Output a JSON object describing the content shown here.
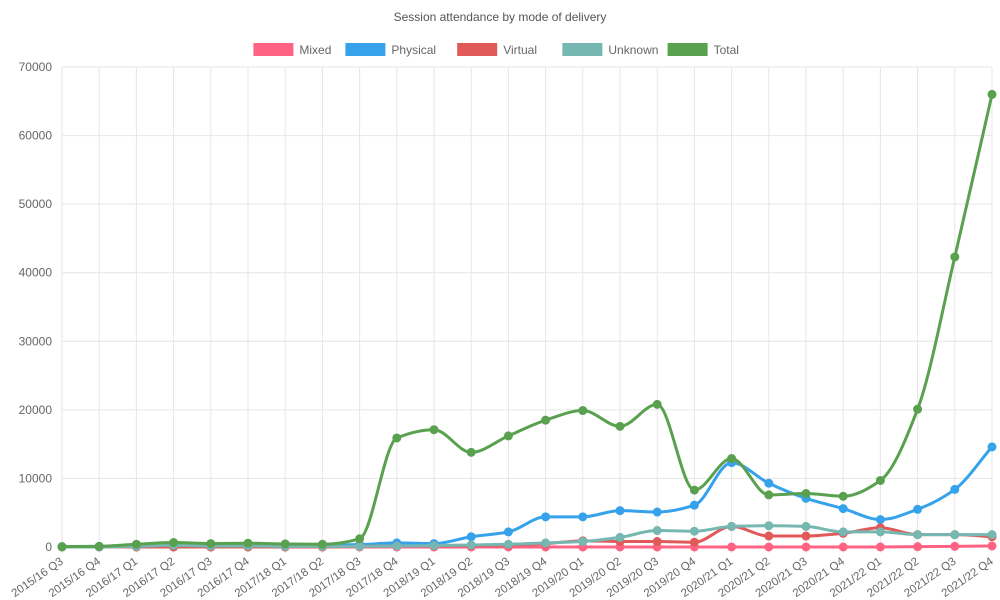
{
  "chart_data": {
    "type": "line",
    "title": "Session attendance by mode of delivery",
    "xlabel": "",
    "ylabel": "",
    "ylim": [
      0,
      70000
    ],
    "yticks": [
      0,
      10000,
      20000,
      30000,
      40000,
      50000,
      60000,
      70000
    ],
    "grid": true,
    "legend_position": "top",
    "categories": [
      "2015/16 Q3",
      "2015/16 Q4",
      "2016/17 Q1",
      "2016/17 Q2",
      "2016/17 Q3",
      "2016/17 Q4",
      "2017/18 Q1",
      "2017/18 Q2",
      "2017/18 Q3",
      "2017/18 Q4",
      "2018/19 Q1",
      "2018/19 Q2",
      "2018/19 Q3",
      "2018/19 Q4",
      "2019/20 Q1",
      "2019/20 Q2",
      "2019/20 Q3",
      "2019/20 Q4",
      "2020/21 Q1",
      "2020/21 Q2",
      "2020/21 Q3",
      "2020/21 Q4",
      "2021/22 Q1",
      "2021/22 Q2",
      "2021/22 Q3",
      "2021/22 Q4"
    ],
    "series": [
      {
        "name": "Mixed",
        "color": "#ff6384",
        "values": [
          0,
          0,
          0,
          0,
          0,
          0,
          0,
          0,
          0,
          0,
          0,
          0,
          0,
          0,
          0,
          0,
          0,
          0,
          0,
          0,
          0,
          0,
          0,
          50,
          100,
          150
        ]
      },
      {
        "name": "Physical",
        "color": "#36a2eb",
        "values": [
          50,
          100,
          300,
          400,
          350,
          400,
          350,
          300,
          350,
          600,
          500,
          1500,
          2200,
          4400,
          4400,
          5300,
          5100,
          6100,
          12300,
          9300,
          7100,
          5600,
          4000,
          5500,
          8400,
          14600
        ]
      },
      {
        "name": "Virtual",
        "color": "#e05a5a",
        "values": [
          0,
          0,
          0,
          0,
          0,
          0,
          0,
          0,
          100,
          150,
          150,
          200,
          300,
          500,
          900,
          800,
          800,
          700,
          3000,
          1600,
          1600,
          2000,
          2800,
          1800,
          1800,
          1500
        ]
      },
      {
        "name": "Unknown",
        "color": "#76b7b2",
        "values": [
          0,
          0,
          100,
          250,
          150,
          150,
          100,
          100,
          100,
          150,
          200,
          300,
          400,
          600,
          800,
          1400,
          2400,
          2300,
          3000,
          3100,
          3000,
          2200,
          2200,
          1800,
          1800,
          1800
        ]
      },
      {
        "name": "Total",
        "color": "#59a14f",
        "values": [
          50,
          100,
          400,
          650,
          500,
          550,
          450,
          400,
          1200,
          15900,
          17100,
          13800,
          16200,
          18500,
          19900,
          17600,
          20800,
          8300,
          12900,
          7600,
          7800,
          7400,
          9700,
          20100,
          42300,
          66000
        ]
      }
    ]
  }
}
